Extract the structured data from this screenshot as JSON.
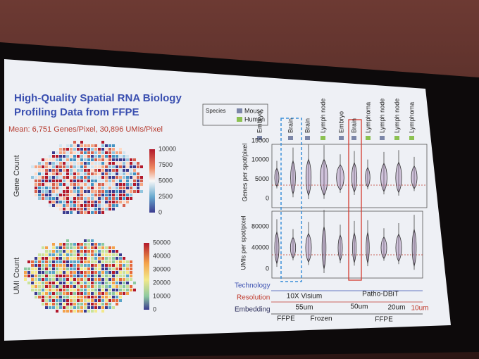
{
  "slide": {
    "title": [
      "High-Quality Spatial RNA Biology",
      "Profiling Data from FFPE"
    ],
    "summary": "Mean: 6,751 Genes/Pixel, 30,896 UMIs/Pixel",
    "heatmaps": [
      {
        "label": "Gene Count",
        "colorbar_ticks": [
          10000,
          7500,
          5000,
          2500,
          0
        ]
      },
      {
        "label": "UMI Count",
        "colorbar_ticks": [
          50000,
          40000,
          30000,
          20000,
          10000,
          0
        ]
      }
    ],
    "species_legend": {
      "title": "Species",
      "items": [
        {
          "label": "Mouse",
          "color": "#7c86a8"
        },
        {
          "label": "Human",
          "color": "#8cc152"
        }
      ]
    },
    "samples": [
      {
        "label": "Embryo",
        "color": "#7c86a8"
      },
      {
        "label": "Brain",
        "color": "#7c86a8"
      },
      {
        "label": "Brain",
        "color": "#7c86a8"
      },
      {
        "label": "Lymph node",
        "color": "#8cc152"
      },
      {
        "label": "Embryo",
        "color": "#7c86a8"
      },
      {
        "label": "Brain",
        "color": "#7c86a8"
      },
      {
        "label": "Lymphoma",
        "color": "#8cc152"
      },
      {
        "label": "Lymph node",
        "color": "#7c86a8"
      },
      {
        "label": "Lymph node",
        "color": "#8cc152"
      },
      {
        "label": "Lymphoma",
        "color": "#8cc152"
      }
    ],
    "panels": [
      {
        "ylabel": "Genes per spot/pixel",
        "yticks": [
          15000,
          10000,
          5000,
          0
        ]
      },
      {
        "ylabel": "UMIs per spot/pixel",
        "yticks": [
          80000,
          40000,
          0
        ]
      }
    ],
    "table": {
      "row_labels": [
        "Technology",
        "Resolution",
        "Embedding"
      ],
      "technology": [
        "10X Visium",
        "Patho-DBiT"
      ],
      "resolution": [
        "55um",
        "50um",
        "20um",
        "10um"
      ],
      "embedding": [
        "FFPE",
        "Frozen",
        "FFPE"
      ]
    }
  }
}
